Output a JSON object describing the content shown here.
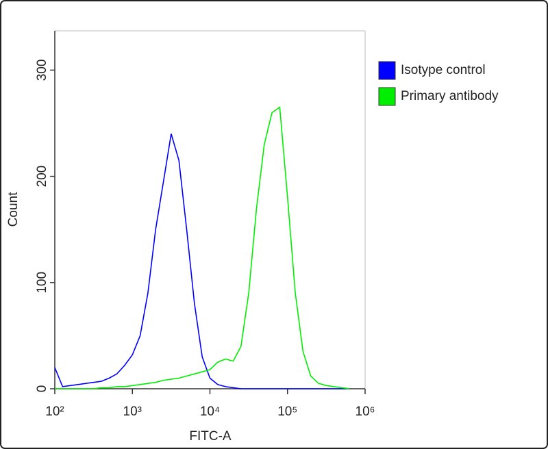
{
  "chart_data": {
    "type": "line",
    "x_label": "FITC-A",
    "y_label": "Count",
    "xscale": "log",
    "xlim": [
      100,
      1000000
    ],
    "xticks": [
      {
        "value": 100,
        "label": "10²"
      },
      {
        "value": 1000,
        "label": "10³"
      },
      {
        "value": 10000,
        "label": "10⁴"
      },
      {
        "value": 100000,
        "label": "10⁵"
      },
      {
        "value": 1000000,
        "label": "10⁶"
      }
    ],
    "ylim": [
      0,
      337
    ],
    "yticks": [
      0,
      100,
      200,
      300
    ],
    "legend": "upper right",
    "x": [
      100,
      126,
      158,
      200,
      251,
      316,
      398,
      501,
      631,
      794,
      1000,
      1259,
      1585,
      1995,
      2512,
      3162,
      3981,
      5012,
      6310,
      7943,
      10000,
      12589,
      15849,
      19953,
      25119,
      31623,
      39811,
      50119,
      63096,
      79433,
      100000,
      125893,
      158489,
      199526,
      251189,
      316228,
      398107,
      501187,
      630957
    ],
    "series": [
      {
        "name": "Isotype control",
        "color": "#0000ff",
        "values": [
          20,
          2,
          3,
          4,
          5,
          6,
          7,
          10,
          14,
          22,
          32,
          50,
          90,
          150,
          195,
          240,
          215,
          150,
          80,
          30,
          10,
          4,
          2,
          1,
          0,
          0,
          0,
          0,
          0,
          0,
          0,
          0,
          0,
          0,
          0,
          0,
          0,
          0,
          0
        ]
      },
      {
        "name": "Primary antibody",
        "color": "#00ee00",
        "values": [
          0,
          0,
          0,
          0,
          0,
          0,
          1,
          1,
          2,
          2,
          3,
          4,
          5,
          6,
          8,
          9,
          10,
          12,
          14,
          16,
          18,
          25,
          28,
          26,
          40,
          90,
          170,
          230,
          260,
          265,
          180,
          90,
          35,
          12,
          5,
          3,
          2,
          1,
          0
        ]
      }
    ]
  }
}
